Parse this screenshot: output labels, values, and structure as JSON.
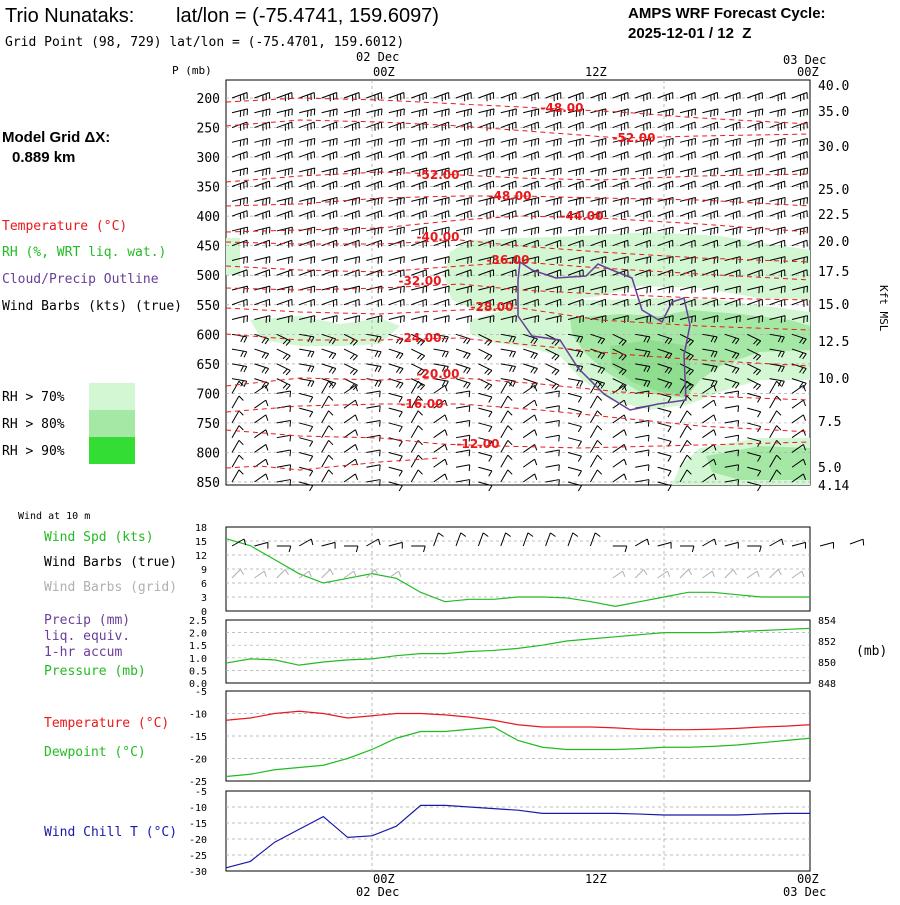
{
  "header": {
    "station": "Trio Nunataks:",
    "latlon_title": "lat/lon = (-75.4741, 159.6097)",
    "grid_point": "Grid Point (98, 729) lat/lon = (-75.4701, 159.6012)",
    "cycle_label": "AMPS WRF Forecast Cycle:",
    "cycle_value": "2025-12-01 / 12  Z"
  },
  "legend": {
    "model_grid": "Model Grid ΔX:",
    "model_grid_value": "0.889 km",
    "temperature": "Temperature (°C)",
    "rh": "RH (%, WRT liq. wat.)",
    "cloud": "Cloud/Precip Outline",
    "wind": "Wind Barbs (kts) (true)",
    "rh70": "RH > 70%",
    "rh80": "RH > 80%",
    "rh90": "RH > 90%"
  },
  "colors": {
    "temp": "#e8191b",
    "rh": "#22bb22",
    "cloud": "#6a3d9a",
    "wind_true": "#000000",
    "wind_grid": "#b0b0b0",
    "precip": "#6a3d9a",
    "pressure": "#22bb22",
    "dewpoint": "#22bb22",
    "windchill": "#1a1aaa",
    "rh70": "#d3f7d3",
    "rh80": "#a5e8a5",
    "rh90": "#33dd33"
  },
  "time_axis": {
    "date_top_left": "02 Dec",
    "date_top_right": "03 Dec",
    "ticks": [
      "00Z",
      "12Z",
      "00Z"
    ],
    "date_bottom_left": "02 Dec",
    "date_bottom_right": "03 Dec"
  },
  "upper_panel": {
    "ylabel": "P (mb)",
    "right_label": "Kft MSL",
    "pressure_ticks": [
      "200",
      "250",
      "300",
      "350",
      "400",
      "450",
      "500",
      "550",
      "600",
      "650",
      "700",
      "750",
      "800",
      "850"
    ],
    "height_ticks": [
      "40.0",
      "35.0",
      "30.0",
      "25.0",
      "22.5",
      "20.0",
      "17.5",
      "15.0",
      "12.5",
      "10.0",
      "7.5",
      "5.0",
      "4.14"
    ],
    "temp_labels": [
      "-48.00",
      "-52.00",
      "-52.00",
      "-48.00",
      "-44.00",
      "-40.00",
      "-36.00",
      "-32.00",
      "-28.00",
      "-24.00",
      "-20.00",
      "-16.00",
      "-12.00"
    ]
  },
  "panels": {
    "wind10m_title": "Wind at 10 m",
    "wind_spd": "Wind Spd (kts)",
    "wind_true": "Wind Barbs (true)",
    "wind_grid": "Wind Barbs (grid)",
    "wind_ticks": [
      "18",
      "15",
      "12",
      "9",
      "6",
      "3",
      "0"
    ],
    "precip": "Precip (mm)",
    "liq": "liq. equiv.",
    "accum": "1-hr accum",
    "pressure": "Pressure (mb)",
    "precip_ticks": [
      "2.5",
      "2.0",
      "1.5",
      "1.0",
      "0.5",
      "0.0"
    ],
    "pressure_ticks": [
      "854",
      "852",
      "850",
      "848"
    ],
    "pressure_unit": "(mb)",
    "temperature": "Temperature (°C)",
    "dewpoint": "Dewpoint (°C)",
    "temp_ticks": [
      "-5",
      "-10",
      "-15",
      "-20",
      "-25"
    ],
    "windchill": "Wind Chill T (°C)",
    "wc_ticks": [
      "-5",
      "-10",
      "-15",
      "-20",
      "-25",
      "-30"
    ]
  },
  "chart_data": [
    {
      "type": "line",
      "title": "Wind at 10 m",
      "x": [
        0,
        2,
        4,
        6,
        8,
        10,
        12,
        14,
        16,
        18,
        20,
        22,
        24,
        26,
        28,
        30,
        32,
        34,
        36,
        38,
        40,
        42,
        44,
        46,
        48
      ],
      "series": [
        {
          "name": "Wind Spd (kts)",
          "values": [
            15.5,
            14,
            11,
            8,
            6,
            7,
            8,
            7,
            4,
            2,
            2.5,
            2.5,
            3,
            3,
            2.8,
            2,
            1,
            2,
            3,
            4,
            4,
            3.5,
            3,
            3,
            3
          ]
        }
      ],
      "ylim": [
        0,
        18
      ]
    },
    {
      "type": "line",
      "x": [
        0,
        2,
        4,
        6,
        8,
        10,
        12,
        14,
        16,
        18,
        20,
        22,
        24,
        26,
        28,
        30,
        32,
        34,
        36,
        38,
        40,
        42,
        44,
        46,
        48
      ],
      "series": [
        {
          "name": "Pressure (mb)",
          "values": [
            849.9,
            850.3,
            850.2,
            849.7,
            850.0,
            850.2,
            850.3,
            850.6,
            850.8,
            850.8,
            851.0,
            851.1,
            851.3,
            851.6,
            852.0,
            852.2,
            852.4,
            852.6,
            852.8,
            852.8,
            852.8,
            852.9,
            853.0,
            853.1,
            853.2
          ]
        }
      ],
      "ylim": [
        848,
        854
      ]
    },
    {
      "type": "line",
      "x": [
        0,
        2,
        4,
        6,
        8,
        10,
        12,
        14,
        16,
        18,
        20,
        22,
        24,
        26,
        28,
        30,
        32,
        34,
        36,
        38,
        40,
        42,
        44,
        46,
        48
      ],
      "series": [
        {
          "name": "Temperature (°C)",
          "values": [
            -11.5,
            -11,
            -10,
            -9.5,
            -10,
            -11,
            -10.5,
            -10,
            -10,
            -10.3,
            -10.8,
            -11.5,
            -12.5,
            -13,
            -13,
            -13,
            -13.2,
            -13.5,
            -13.6,
            -13.6,
            -13.5,
            -13.3,
            -13,
            -12.8,
            -12.5
          ]
        },
        {
          "name": "Dewpoint (°C)",
          "values": [
            -24,
            -23.5,
            -22.5,
            -22,
            -21.5,
            -20,
            -18,
            -15.5,
            -14,
            -14,
            -13.5,
            -13,
            -16,
            -17.5,
            -18,
            -18,
            -18,
            -17.8,
            -17.5,
            -17.5,
            -17.3,
            -17,
            -16.5,
            -16,
            -15.5
          ]
        }
      ],
      "ylim": [
        -25,
        -5
      ]
    },
    {
      "type": "line",
      "x": [
        0,
        2,
        4,
        6,
        8,
        10,
        12,
        14,
        16,
        18,
        20,
        22,
        24,
        26,
        28,
        30,
        32,
        34,
        36,
        38,
        40,
        42,
        44,
        46,
        48
      ],
      "series": [
        {
          "name": "Wind Chill T (°C)",
          "values": [
            -29,
            -27,
            -21,
            -17,
            -13,
            -19.5,
            -19,
            -16,
            -9.5,
            -9.5,
            -10,
            -10.5,
            -11,
            -12,
            -12,
            -12,
            -12,
            -12.2,
            -12.5,
            -12.5,
            -12.5,
            -12.5,
            -12.2,
            -12,
            -12
          ]
        }
      ],
      "ylim": [
        -30,
        -5
      ]
    }
  ]
}
